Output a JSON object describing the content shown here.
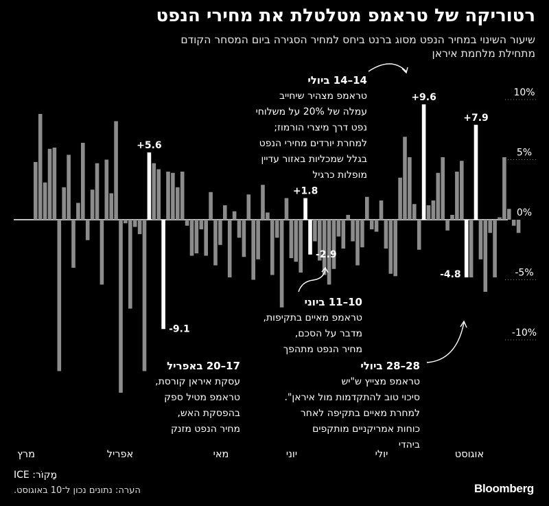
{
  "header": {
    "title": "רטוריקה של טראמפ מטלטלת את מחירי הנפט",
    "subtitle_line1": "שיעור השינוי במחיר הנפט מסוג ברנט ביחס למחיר הסגירה ביום המסחר הקודם",
    "subtitle_line2": "מתחילת מלחמת איראן"
  },
  "chart_data": {
    "type": "bar",
    "ylim": [
      -15,
      12
    ],
    "ytick_values": [
      10,
      5,
      0,
      -5,
      -10
    ],
    "ytick_labels": [
      "10%",
      "5%",
      "0%",
      "-5%",
      "-10%"
    ],
    "x_month_labels": [
      "מרץ",
      "אפריל",
      "מאי",
      "יוני",
      "יולי",
      "אוגוסט"
    ],
    "values": [
      4.8,
      8.8,
      3.1,
      5.9,
      6.0,
      -12.6,
      2.7,
      5.4,
      -4.0,
      1.4,
      6.4,
      -1.7,
      2.5,
      4.7,
      -5.4,
      5.0,
      2.2,
      8.2,
      -14.4,
      -0.3,
      -7.4,
      -0.6,
      -1.2,
      -12.6,
      5.6,
      4.7,
      4.2,
      -9.1,
      4.0,
      3.9,
      2.7,
      4.0,
      -0.5,
      -3.0,
      -2.8,
      -0.8,
      -3.0,
      2.3,
      -3.8,
      -2.1,
      1.2,
      -4.8,
      0.7,
      -1.5,
      -3.1,
      2.1,
      -5.0,
      -3.3,
      2.9,
      0.6,
      -4.6,
      -1.5,
      -7.3,
      1.8,
      -3.2,
      -3.5,
      -4.4,
      1.8,
      -2.9,
      -1.8,
      -3.4,
      -4.6,
      -5.4,
      -4.1,
      -1.4,
      -2.4,
      0.4,
      -1.8,
      -3.8,
      -2.3,
      1.9,
      -0.8,
      -1.0,
      1.6,
      -2.4,
      -4.5,
      -4.7,
      3.5,
      6.9,
      5.2,
      1.3,
      -2.5,
      9.6,
      1.2,
      1.6,
      3.9,
      5.2,
      -0.9,
      0.4,
      4.0,
      4.9,
      -4.8,
      -4.8,
      7.9,
      -3.3,
      -6.0,
      -1.1,
      -4.8,
      0.2,
      5.2,
      0.9,
      -0.5,
      -1.1
    ],
    "highlight_labels": [
      {
        "index": 24,
        "label": "+5.6"
      },
      {
        "index": 27,
        "label": "-9.1"
      },
      {
        "index": 57,
        "label": "+1.8"
      },
      {
        "index": 58,
        "label": "-2.9"
      },
      {
        "index": 82,
        "label": "+9.6"
      },
      {
        "index": 91,
        "label": "-4.8"
      },
      {
        "index": 93,
        "label": "+7.9"
      }
    ]
  },
  "annotations": {
    "july14": {
      "date": "14–14 ביולי",
      "lines": [
        "טראמפ מצהיר שיחייב",
        "עמלה של 20% על משלוחי",
        "נפט דרך מיצרי הורמוז;",
        "למחרת יורדים מחירי הנפט",
        "בגלל שמכליות באזור עדיין",
        "מופלות כרגיל"
      ]
    },
    "june10": {
      "date": "10–11 ביוני",
      "lines": [
        "טראמפ מאיים בתקיפות,",
        "מדבר על הסכם,",
        "מחיר הנפט מתהפך"
      ]
    },
    "april17": {
      "date": "17–20 באפריל",
      "lines": [
        "עסקת איראן קורסת,",
        "טראמפ מטיל ספק",
        "בהפסקת האש,",
        "מחיר הנפט מזנק"
      ]
    },
    "july28": {
      "date": "28–28 ביולי",
      "lines": [
        "טראמפ  מצייץ ש\"יש",
        "סיכוי טוב להתקדמות מול איראן\".",
        "למחרת מאיים בתקיפה לאחר",
        "כוחות אמריקניים מותקפים",
        "ביהדי"
      ]
    }
  },
  "footer": {
    "source": "מָקוֹר: ICE",
    "note": "הערה: נתונים נכון ל־10 באוגוסט.",
    "brand": "Bloomberg"
  }
}
